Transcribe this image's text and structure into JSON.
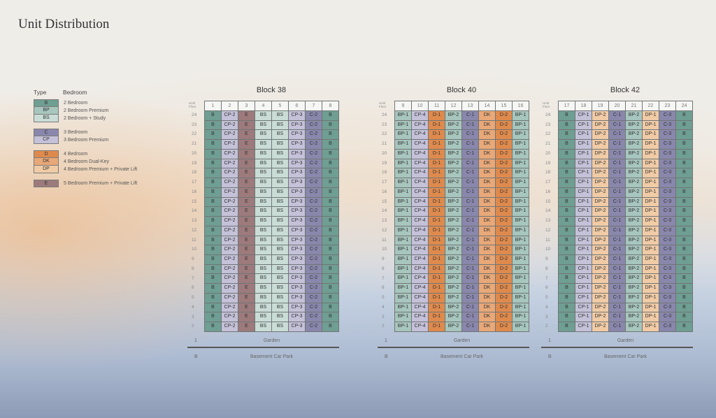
{
  "page_title": "Unit Distribution",
  "legend": {
    "type_header": "Type",
    "bedroom_header": "Bedroom",
    "groups": [
      [
        {
          "code": "B",
          "label": "2 Bedroom"
        },
        {
          "code": "BP",
          "label": "2 Bedroom Premium"
        },
        {
          "code": "BS",
          "label": "2 Bedroom + Study"
        }
      ],
      [
        {
          "code": "C",
          "label": "3 Bedroom"
        },
        {
          "code": "CP",
          "label": "3 Bedroom Premium"
        }
      ],
      [
        {
          "code": "D",
          "label": "4 Bedroom"
        },
        {
          "code": "DK",
          "label": "4 Bedroom Dual-Key"
        },
        {
          "code": "DP",
          "label": "4 Bedroom Premium + Private Lift"
        }
      ],
      [
        {
          "code": "E",
          "label": "5 Bedroom Premium + Private Lift"
        }
      ]
    ]
  },
  "colors": {
    "B": "#6f9e92",
    "BP": "#a7c6bd",
    "BS": "#c9ddd6",
    "C": "#8987ac",
    "CP": "#c4c1d9",
    "D": "#df8a4d",
    "DK": "#e8a878",
    "DP": "#f0cba6",
    "E": "#9d7a7c"
  },
  "unit_floor_label": "Unit/ Floor",
  "floors": [
    24,
    23,
    22,
    21,
    20,
    19,
    18,
    17,
    16,
    15,
    14,
    13,
    12,
    11,
    10,
    9,
    8,
    7,
    6,
    5,
    4,
    3,
    2
  ],
  "ground": {
    "floor": "1",
    "label": "Garden"
  },
  "basement": {
    "floor": "B",
    "label": "Basement Car Park"
  },
  "blocks": [
    {
      "name": "Block 38",
      "units": [
        {
          "no": "1",
          "type": "B"
        },
        {
          "no": "2",
          "type": "CP-2"
        },
        {
          "no": "3",
          "type": "E"
        },
        {
          "no": "4",
          "type": "BS"
        },
        {
          "no": "5",
          "type": "BS"
        },
        {
          "no": "6",
          "type": "CP-3"
        },
        {
          "no": "7",
          "type": "C-2"
        },
        {
          "no": "8",
          "type": "B"
        }
      ]
    },
    {
      "name": "Block 40",
      "units": [
        {
          "no": "9",
          "type": "BP-1"
        },
        {
          "no": "10",
          "type": "CP-4"
        },
        {
          "no": "11",
          "type": "D-1"
        },
        {
          "no": "12",
          "type": "BP-2"
        },
        {
          "no": "13",
          "type": "C-1"
        },
        {
          "no": "14",
          "type": "DK"
        },
        {
          "no": "15",
          "type": "D-2"
        },
        {
          "no": "16",
          "type": "BP-1"
        }
      ]
    },
    {
      "name": "Block 42",
      "units": [
        {
          "no": "17",
          "type": "B"
        },
        {
          "no": "18",
          "type": "CP-1"
        },
        {
          "no": "19",
          "type": "DP-2"
        },
        {
          "no": "20",
          "type": "C-1"
        },
        {
          "no": "21",
          "type": "BP-2"
        },
        {
          "no": "22",
          "type": "DP-1"
        },
        {
          "no": "23",
          "type": "C-3"
        },
        {
          "no": "24",
          "type": "B"
        }
      ]
    }
  ]
}
